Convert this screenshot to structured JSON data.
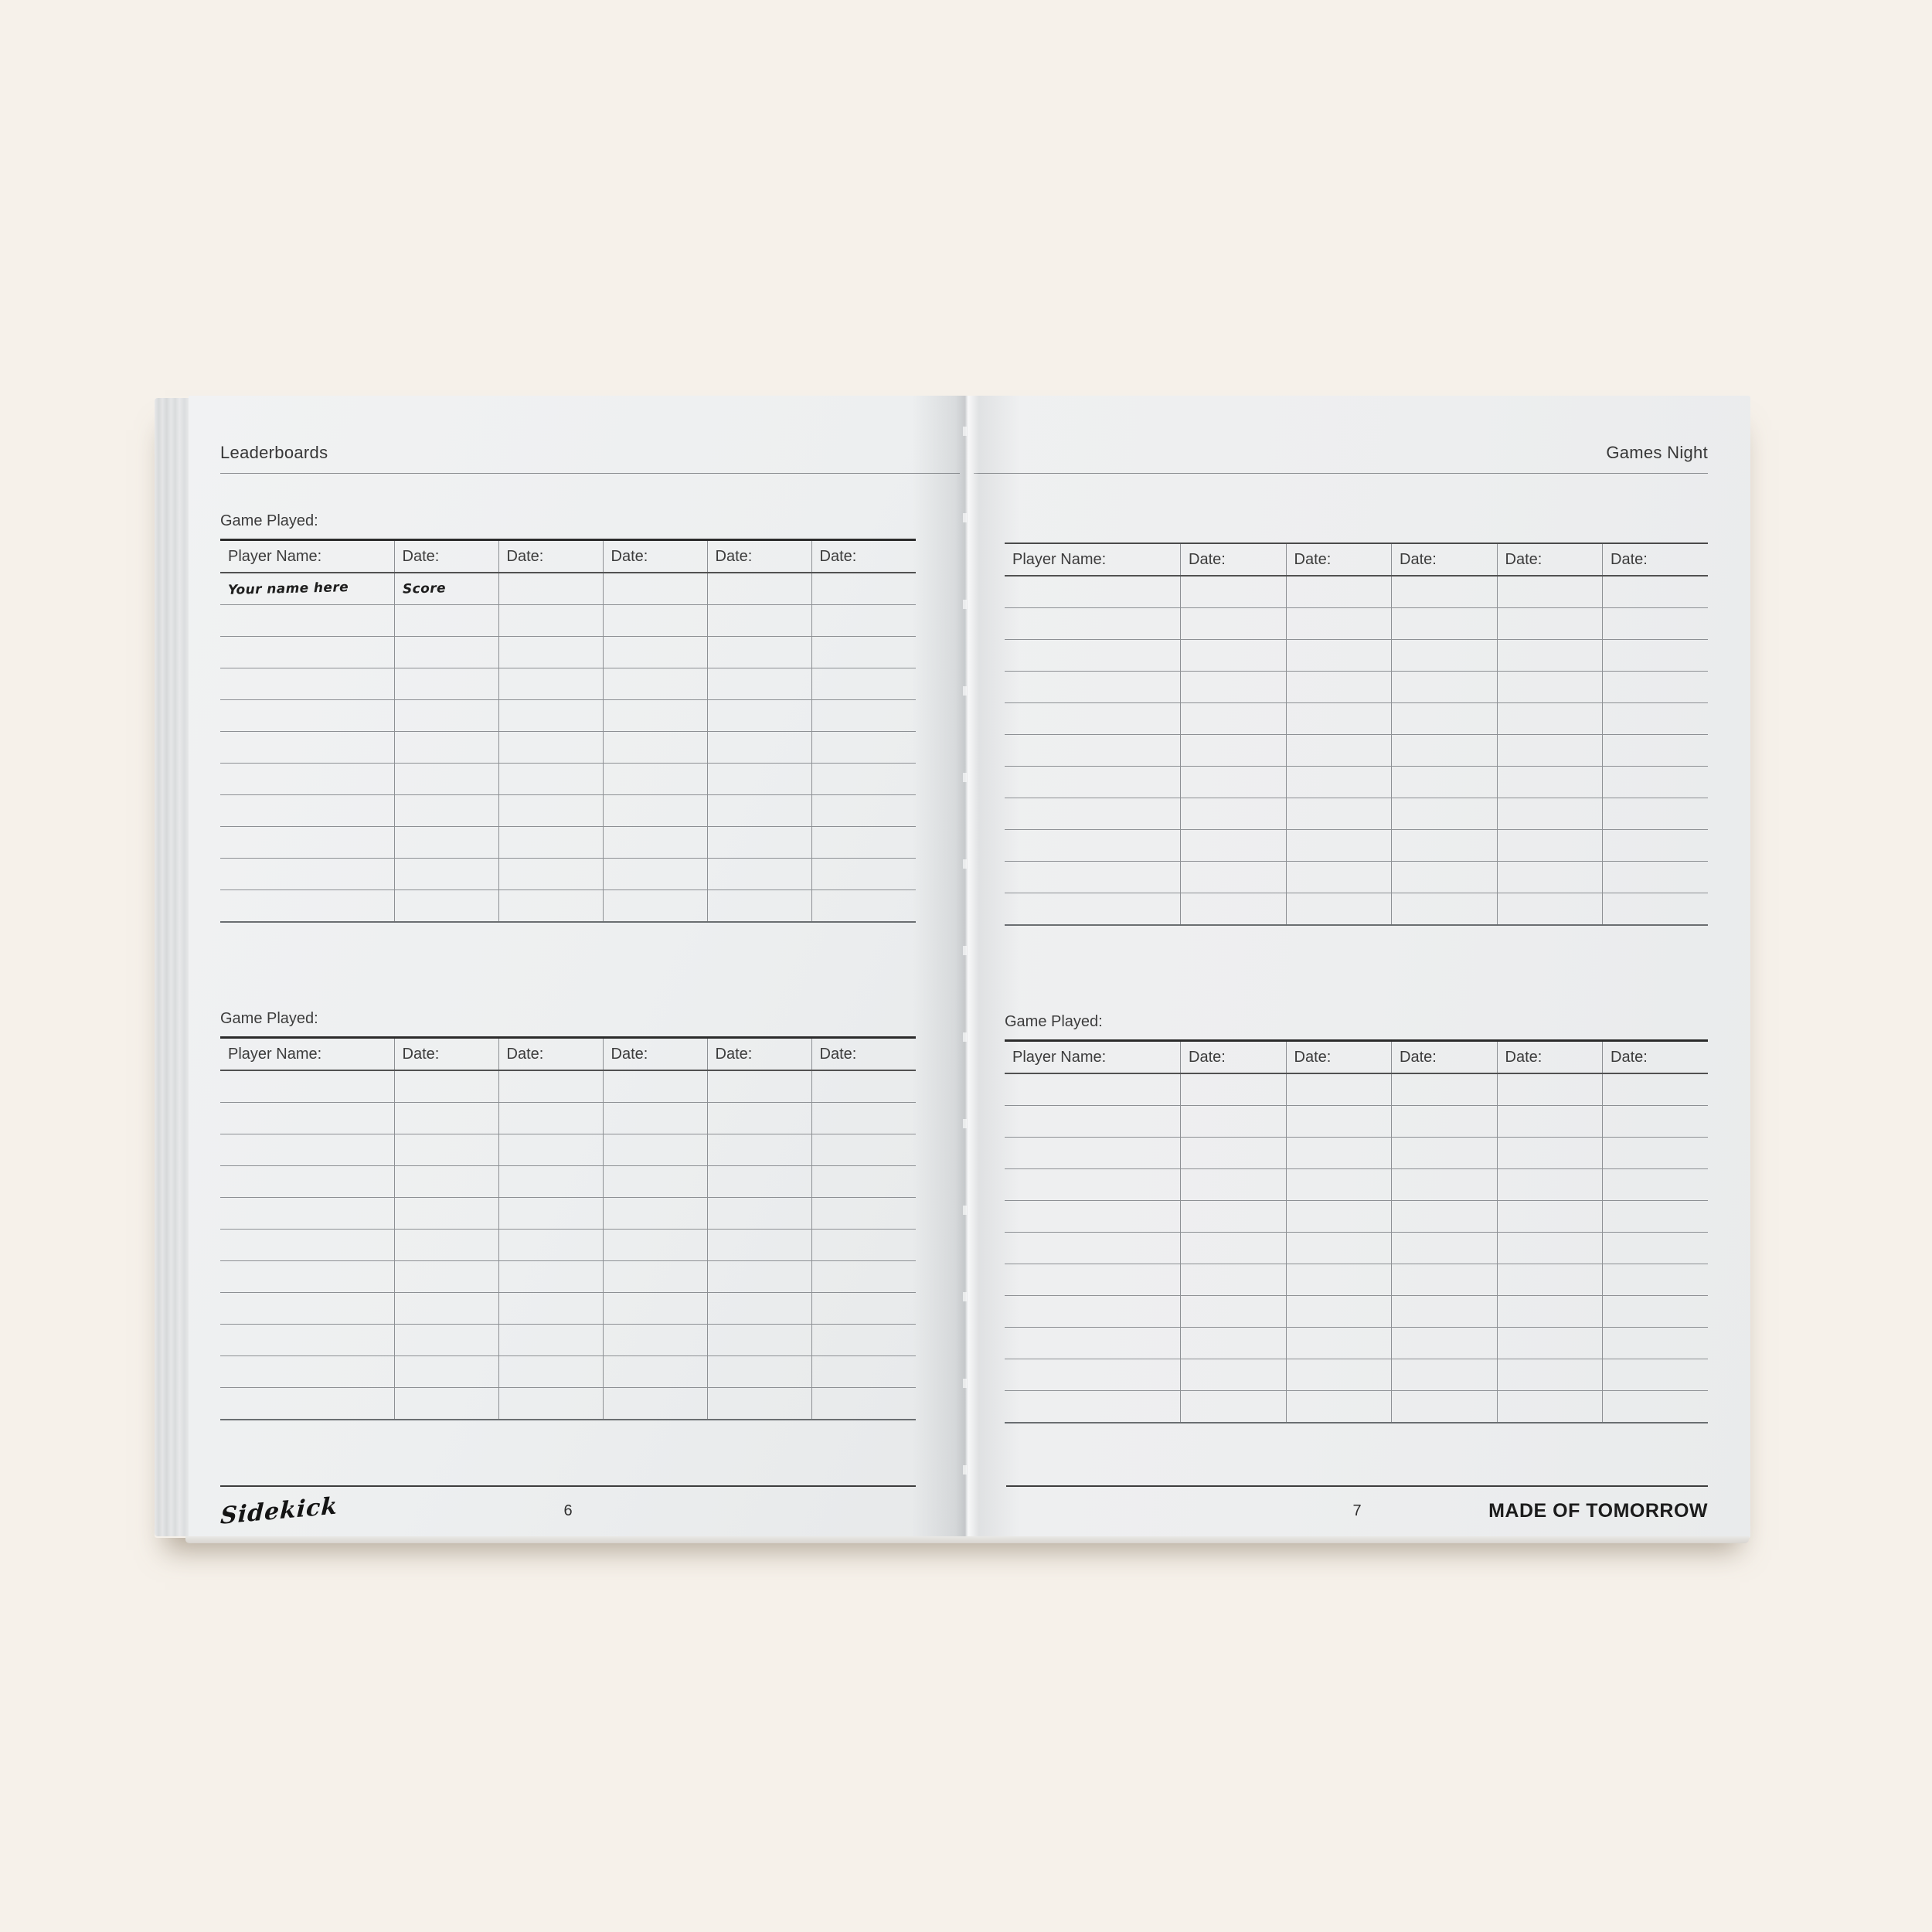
{
  "colors": {
    "background": "#f6f1ea",
    "paper": "#eef0f0",
    "rule_line": "#8d9094",
    "heavy_line": "#2b2b2b",
    "text": "#3c3c3c"
  },
  "spread": {
    "left_page": {
      "header": {
        "title": "Leaderboards"
      },
      "tables": [
        {
          "label": "Game Played:",
          "columns": [
            "Player Name:",
            "Date:",
            "Date:",
            "Date:",
            "Date:",
            "Date:"
          ],
          "row_count": 11,
          "handwritten_entries": [
            {
              "row": 0,
              "col": 0,
              "text": "Your name here"
            },
            {
              "row": 0,
              "col": 1,
              "text": "Score"
            }
          ]
        },
        {
          "label": "Game Played:",
          "columns": [
            "Player Name:",
            "Date:",
            "Date:",
            "Date:",
            "Date:",
            "Date:"
          ],
          "row_count": 11,
          "handwritten_entries": []
        }
      ],
      "footer": {
        "logo_text": "Sidekick",
        "page_number": "6"
      }
    },
    "right_page": {
      "header": {
        "title": "Games Night"
      },
      "tables": [
        {
          "label": "",
          "columns": [
            "Player Name:",
            "Date:",
            "Date:",
            "Date:",
            "Date:",
            "Date:"
          ],
          "row_count": 11,
          "handwritten_entries": []
        },
        {
          "label": "Game Played:",
          "columns": [
            "Player Name:",
            "Date:",
            "Date:",
            "Date:",
            "Date:",
            "Date:"
          ],
          "row_count": 11,
          "handwritten_entries": []
        }
      ],
      "footer": {
        "page_number": "7",
        "brand_text": "MADE OF TOMORROW"
      }
    }
  }
}
